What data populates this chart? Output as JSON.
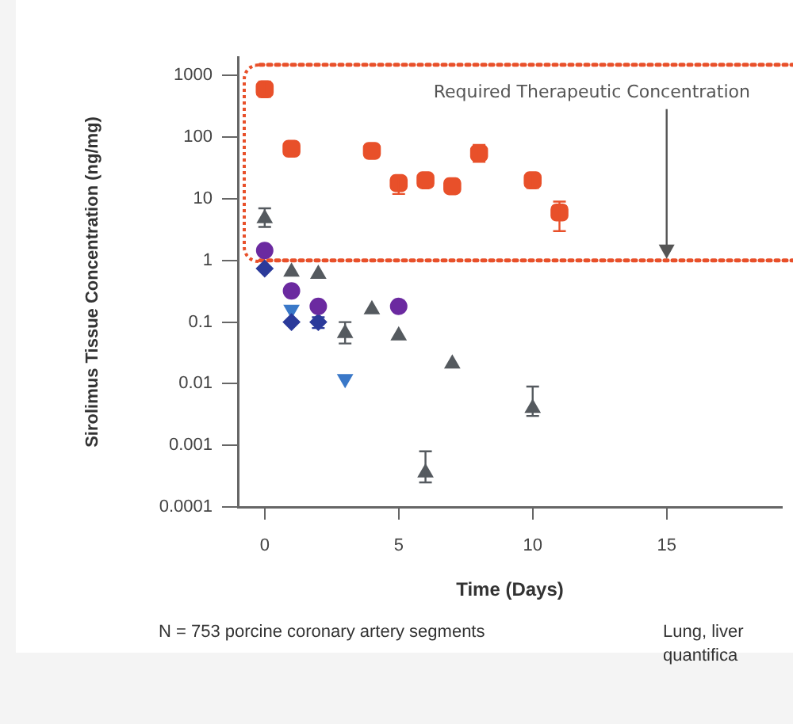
{
  "chart_data": {
    "type": "scatter",
    "xlabel": "Time (Days)",
    "ylabel": "Sirolimus Tissue Concentration (ng/mg)",
    "log": "y",
    "xlim": [
      -1,
      19.3
    ],
    "xticks": [
      0,
      5,
      10,
      15
    ],
    "ylim": [
      0.0001,
      2000
    ],
    "yticks": [
      1000,
      100,
      10,
      1,
      0.1,
      0.01,
      0.001,
      0.0001
    ],
    "grid": false,
    "legend": false,
    "series": [
      {
        "color": "#e8502a",
        "marker": "square",
        "x": [
          0,
          1,
          4,
          5,
          6,
          7,
          8,
          10,
          11
        ],
        "values": [
          600,
          65,
          60,
          18,
          20,
          16,
          55,
          20,
          6
        ],
        "errors": [
          [
            450,
            800
          ],
          null,
          null,
          [
            12,
            22
          ],
          null,
          null,
          [
            40,
            75
          ],
          [
            15,
            26
          ],
          [
            3,
            9
          ]
        ]
      },
      {
        "color": "#555a5f",
        "marker": "triangle",
        "x": [
          0,
          1,
          2,
          3,
          4,
          5,
          6,
          7,
          10
        ],
        "values": [
          4.8,
          0.65,
          0.6,
          0.066,
          0.16,
          0.06,
          0.00036,
          0.021,
          0.004
        ],
        "errors": [
          [
            3.5,
            7
          ],
          null,
          null,
          [
            0.045,
            0.1
          ],
          null,
          null,
          [
            0.00025,
            0.0008
          ],
          null,
          [
            0.003,
            0.009
          ]
        ]
      },
      {
        "color": "#6b2aa0",
        "marker": "circle",
        "x": [
          0,
          1,
          2,
          5
        ],
        "values": [
          1.45,
          0.32,
          0.18,
          0.18
        ]
      },
      {
        "color": "#2b3a9a",
        "marker": "diamond",
        "x": [
          0,
          1,
          2
        ],
        "values": [
          0.74,
          0.1,
          0.1
        ],
        "errors": [
          null,
          null,
          [
            0.08,
            0.12
          ]
        ]
      },
      {
        "color": "#3a78c8",
        "marker": "triangle-down",
        "x": [
          1,
          3
        ],
        "values": [
          0.16,
          0.012
        ]
      }
    ],
    "ref_lines": [
      {
        "axis": "y",
        "value": 1500,
        "color": "#e8502a",
        "line_style": "dotted"
      },
      {
        "axis": "y",
        "value": 1,
        "label": "Required Therapeutic Concentration",
        "color": "#e8502a",
        "line_style": "dotted"
      }
    ],
    "annotations": [
      "N = 753 porcine coronary artery segments",
      "Lung, liver",
      "quantifica"
    ]
  }
}
